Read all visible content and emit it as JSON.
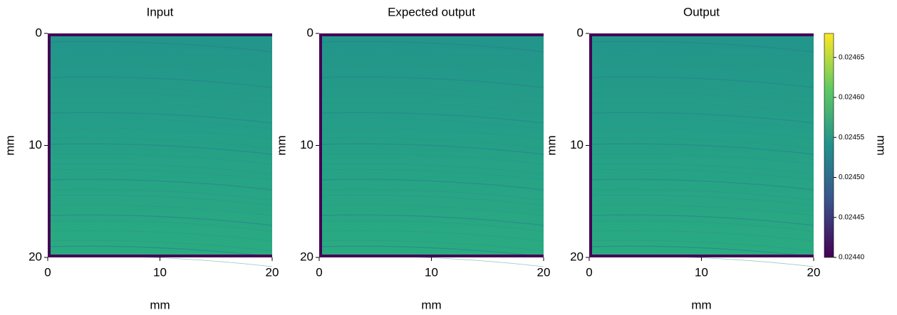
{
  "chart_data": [
    {
      "type": "heatmap",
      "title": "Input",
      "xlabel": "mm",
      "ylabel": "mm",
      "xlim": [
        0,
        20
      ],
      "ylim": [
        20,
        0
      ],
      "xticks": [
        0,
        10,
        20
      ],
      "yticks": [
        0,
        10,
        20
      ]
    },
    {
      "type": "heatmap",
      "title": "Expected output",
      "xlabel": "mm",
      "ylabel": "mm",
      "xlim": [
        0,
        20
      ],
      "ylim": [
        20,
        0
      ],
      "xticks": [
        0,
        10,
        20
      ],
      "yticks": [
        0,
        10,
        20
      ]
    },
    {
      "type": "heatmap",
      "title": "Output",
      "xlabel": "mm",
      "ylabel": "mm",
      "xlim": [
        0,
        20
      ],
      "ylim": [
        20,
        0
      ],
      "xticks": [
        0,
        10,
        20
      ],
      "yticks": [
        0,
        10,
        20
      ],
      "colorbar": {
        "label": "mm",
        "clim": [
          0.0244,
          0.02468
        ],
        "ticks": [
          {
            "value": 0.0244,
            "label": "0.02440"
          },
          0.02445,
          {
            "value": 0.0245,
            "label": "0.02450"
          },
          0.02455,
          {
            "value": 0.0246,
            "label": "0.02460"
          },
          0.02465
        ],
        "colormap": [
          "#440154",
          "#3b528b",
          "#21918c",
          "#5ec962",
          "#fde725"
        ]
      }
    }
  ]
}
